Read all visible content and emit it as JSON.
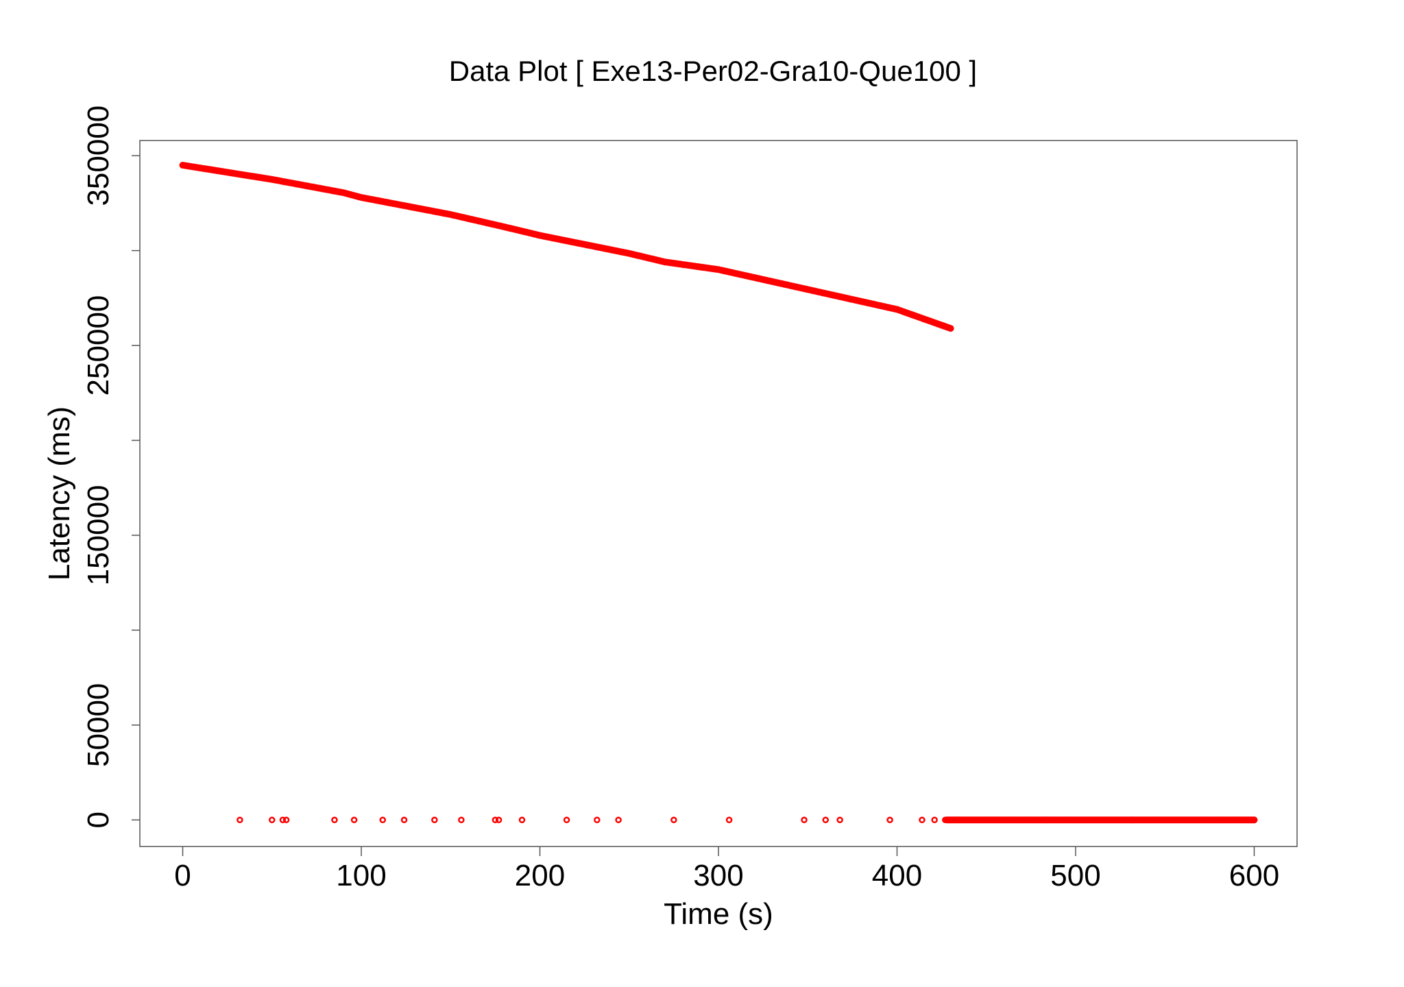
{
  "chart_data": {
    "type": "scatter",
    "title": "Data Plot [ Exe13-Per02-Gra10-Que100 ]",
    "xlabel": "Time (s)",
    "ylabel": "Latency (ms)",
    "xlim": [
      -24,
      624
    ],
    "ylim": [
      -14000,
      358000
    ],
    "x_ticks": [
      0,
      100,
      200,
      300,
      400,
      500,
      600
    ],
    "x_tick_labels": [
      "0",
      "100",
      "200",
      "300",
      "400",
      "500",
      "600"
    ],
    "y_ticks": [
      0,
      50000,
      100000,
      150000,
      200000,
      250000,
      300000,
      350000
    ],
    "y_tick_labels": [
      "0",
      "50000",
      "",
      "150000",
      "",
      "250000",
      "",
      "350000"
    ],
    "grid": false,
    "marker_color": "#ff0000",
    "series": [
      {
        "description": "decreasing latency line",
        "points": [
          [
            0,
            345000
          ],
          [
            50,
            337500
          ],
          [
            90,
            330500
          ],
          [
            100,
            328000
          ],
          [
            150,
            319000
          ],
          [
            180,
            312500
          ],
          [
            200,
            308000
          ],
          [
            250,
            298500
          ],
          [
            270,
            294000
          ],
          [
            300,
            290000
          ],
          [
            350,
            279500
          ],
          [
            400,
            269000
          ],
          [
            430,
            259000
          ]
        ]
      },
      {
        "description": "near-zero latency points",
        "points": [
          [
            32,
            0
          ],
          [
            50,
            0
          ],
          [
            56,
            0
          ],
          [
            58,
            0
          ],
          [
            85,
            0
          ],
          [
            96,
            0
          ],
          [
            112,
            0
          ],
          [
            124,
            0
          ],
          [
            141,
            0
          ],
          [
            156,
            0
          ],
          [
            175,
            0
          ],
          [
            177,
            0
          ],
          [
            190,
            0
          ],
          [
            215,
            0
          ],
          [
            232,
            0
          ],
          [
            244,
            0
          ],
          [
            275,
            0
          ],
          [
            306,
            0
          ],
          [
            348,
            0
          ],
          [
            360,
            0
          ],
          [
            368,
            0
          ],
          [
            396,
            0
          ],
          [
            414,
            0
          ],
          [
            421,
            0
          ],
          [
            427,
            0
          ]
        ],
        "dense_range": [
          428,
          600
        ]
      }
    ]
  }
}
